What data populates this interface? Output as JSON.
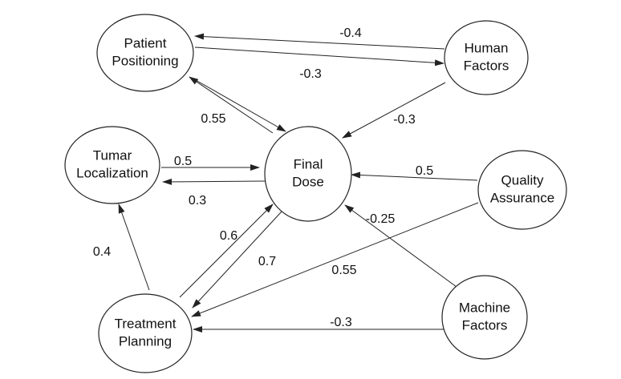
{
  "nodes": [
    {
      "id": "patient",
      "name": "node-patient-positioning",
      "lines": [
        "Patient",
        "Positioning"
      ]
    },
    {
      "id": "human",
      "name": "node-human-factors",
      "lines": [
        "Human",
        "Factors"
      ]
    },
    {
      "id": "tumar",
      "name": "node-tumar-localization",
      "lines": [
        "Tumar",
        "Localization"
      ]
    },
    {
      "id": "final",
      "name": "node-final-dose",
      "lines": [
        "Final",
        "Dose"
      ]
    },
    {
      "id": "quality",
      "name": "node-quality-assurance",
      "lines": [
        "Quality",
        "Assurance"
      ]
    },
    {
      "id": "treatment",
      "name": "node-treatment-planning",
      "lines": [
        "Treatment",
        "Planning"
      ]
    },
    {
      "id": "machine",
      "name": "node-machine-factors",
      "lines": [
        "Machine",
        "Factors"
      ]
    }
  ],
  "edges": [
    {
      "from": "human",
      "to": "patient",
      "label": "-0.4"
    },
    {
      "from": "patient",
      "to": "human",
      "label": "-0.3"
    },
    {
      "from": "final",
      "to": "patient",
      "label": "0.55"
    },
    {
      "from": "patient",
      "to": "final",
      "label": ""
    },
    {
      "from": "human",
      "to": "final",
      "label": "-0.3"
    },
    {
      "from": "tumar",
      "to": "final",
      "label": "0.5"
    },
    {
      "from": "final",
      "to": "tumar",
      "label": "0.3"
    },
    {
      "from": "quality",
      "to": "final",
      "label": "0.5"
    },
    {
      "from": "machine",
      "to": "final",
      "label": "-0.25"
    },
    {
      "from": "treatment",
      "to": "final",
      "label": "0.6"
    },
    {
      "from": "final",
      "to": "treatment",
      "label": "0.7"
    },
    {
      "from": "quality",
      "to": "treatment",
      "label": "0.55"
    },
    {
      "from": "treatment",
      "to": "tumar",
      "label": "0.4"
    },
    {
      "from": "machine",
      "to": "treatment",
      "label": "-0.3"
    }
  ]
}
